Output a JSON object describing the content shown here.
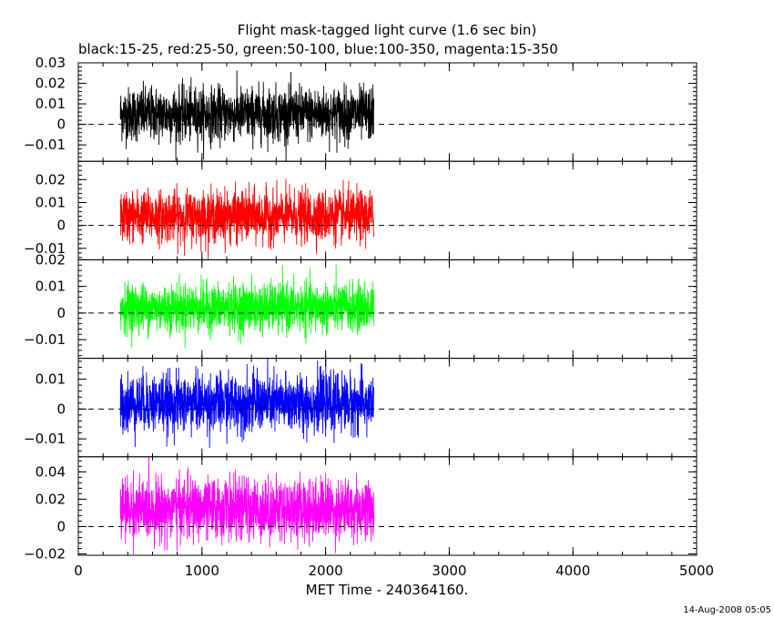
{
  "chart_data": {
    "type": "line",
    "title": "Flight mask-tagged light curve (1.6 sec bin)",
    "subtitle": "black:15-25, red:25-50, green:50-100, blue:100-350, magenta:15-350",
    "xlabel": "MET Time - 240364160.",
    "xlim": [
      0,
      5000
    ],
    "x_ticks": [
      0,
      1000,
      2000,
      3000,
      4000,
      5000
    ],
    "x_tick_labels": [
      "0",
      "1000",
      "2000",
      "3000",
      "4000",
      "5000"
    ],
    "bin_seconds": 1.6,
    "data_x_range": [
      340,
      2390
    ],
    "zero_line": "dashed",
    "panels": [
      {
        "band": "15-25",
        "color": "#000000",
        "ylim": [
          -0.018,
          0.03
        ],
        "y_ticks": [
          -0.01,
          0,
          0.01,
          0.02,
          0.03
        ],
        "y_tick_labels": [
          "−0.01",
          "0",
          "0.01",
          "0.02",
          "0.03"
        ],
        "mean": 0.005,
        "noise_sigma": 0.0065
      },
      {
        "band": "25-50",
        "color": "#ff0000",
        "ylim": [
          -0.015,
          0.028
        ],
        "y_ticks": [
          -0.01,
          0,
          0.01,
          0.02
        ],
        "y_tick_labels": [
          "−0.01",
          "0",
          "0.01",
          "0.02"
        ],
        "mean": 0.004,
        "noise_sigma": 0.0055
      },
      {
        "band": "50-100",
        "color": "#00ff00",
        "ylim": [
          -0.017,
          0.02
        ],
        "y_ticks": [
          -0.01,
          0,
          0.01,
          0.02
        ],
        "y_tick_labels": [
          "−0.01",
          "0",
          "0.01",
          "0.02"
        ],
        "mean": 0.002,
        "noise_sigma": 0.0045
      },
      {
        "band": "100-350",
        "color": "#0000ff",
        "ylim": [
          -0.016,
          0.017
        ],
        "y_ticks": [
          -0.01,
          0,
          0.01
        ],
        "y_tick_labels": [
          "−0.01",
          "0",
          "0.01"
        ],
        "mean": 0.002,
        "noise_sigma": 0.0048
      },
      {
        "band": "15-350",
        "color": "#ff00ff",
        "ylim": [
          -0.021,
          0.051
        ],
        "y_ticks": [
          -0.02,
          0,
          0.02,
          0.04
        ],
        "y_tick_labels": [
          "−0.02",
          "0",
          "0.02",
          "0.04"
        ],
        "mean": 0.013,
        "noise_sigma": 0.011
      }
    ]
  },
  "timestamp": "14-Aug-2008 05:05"
}
